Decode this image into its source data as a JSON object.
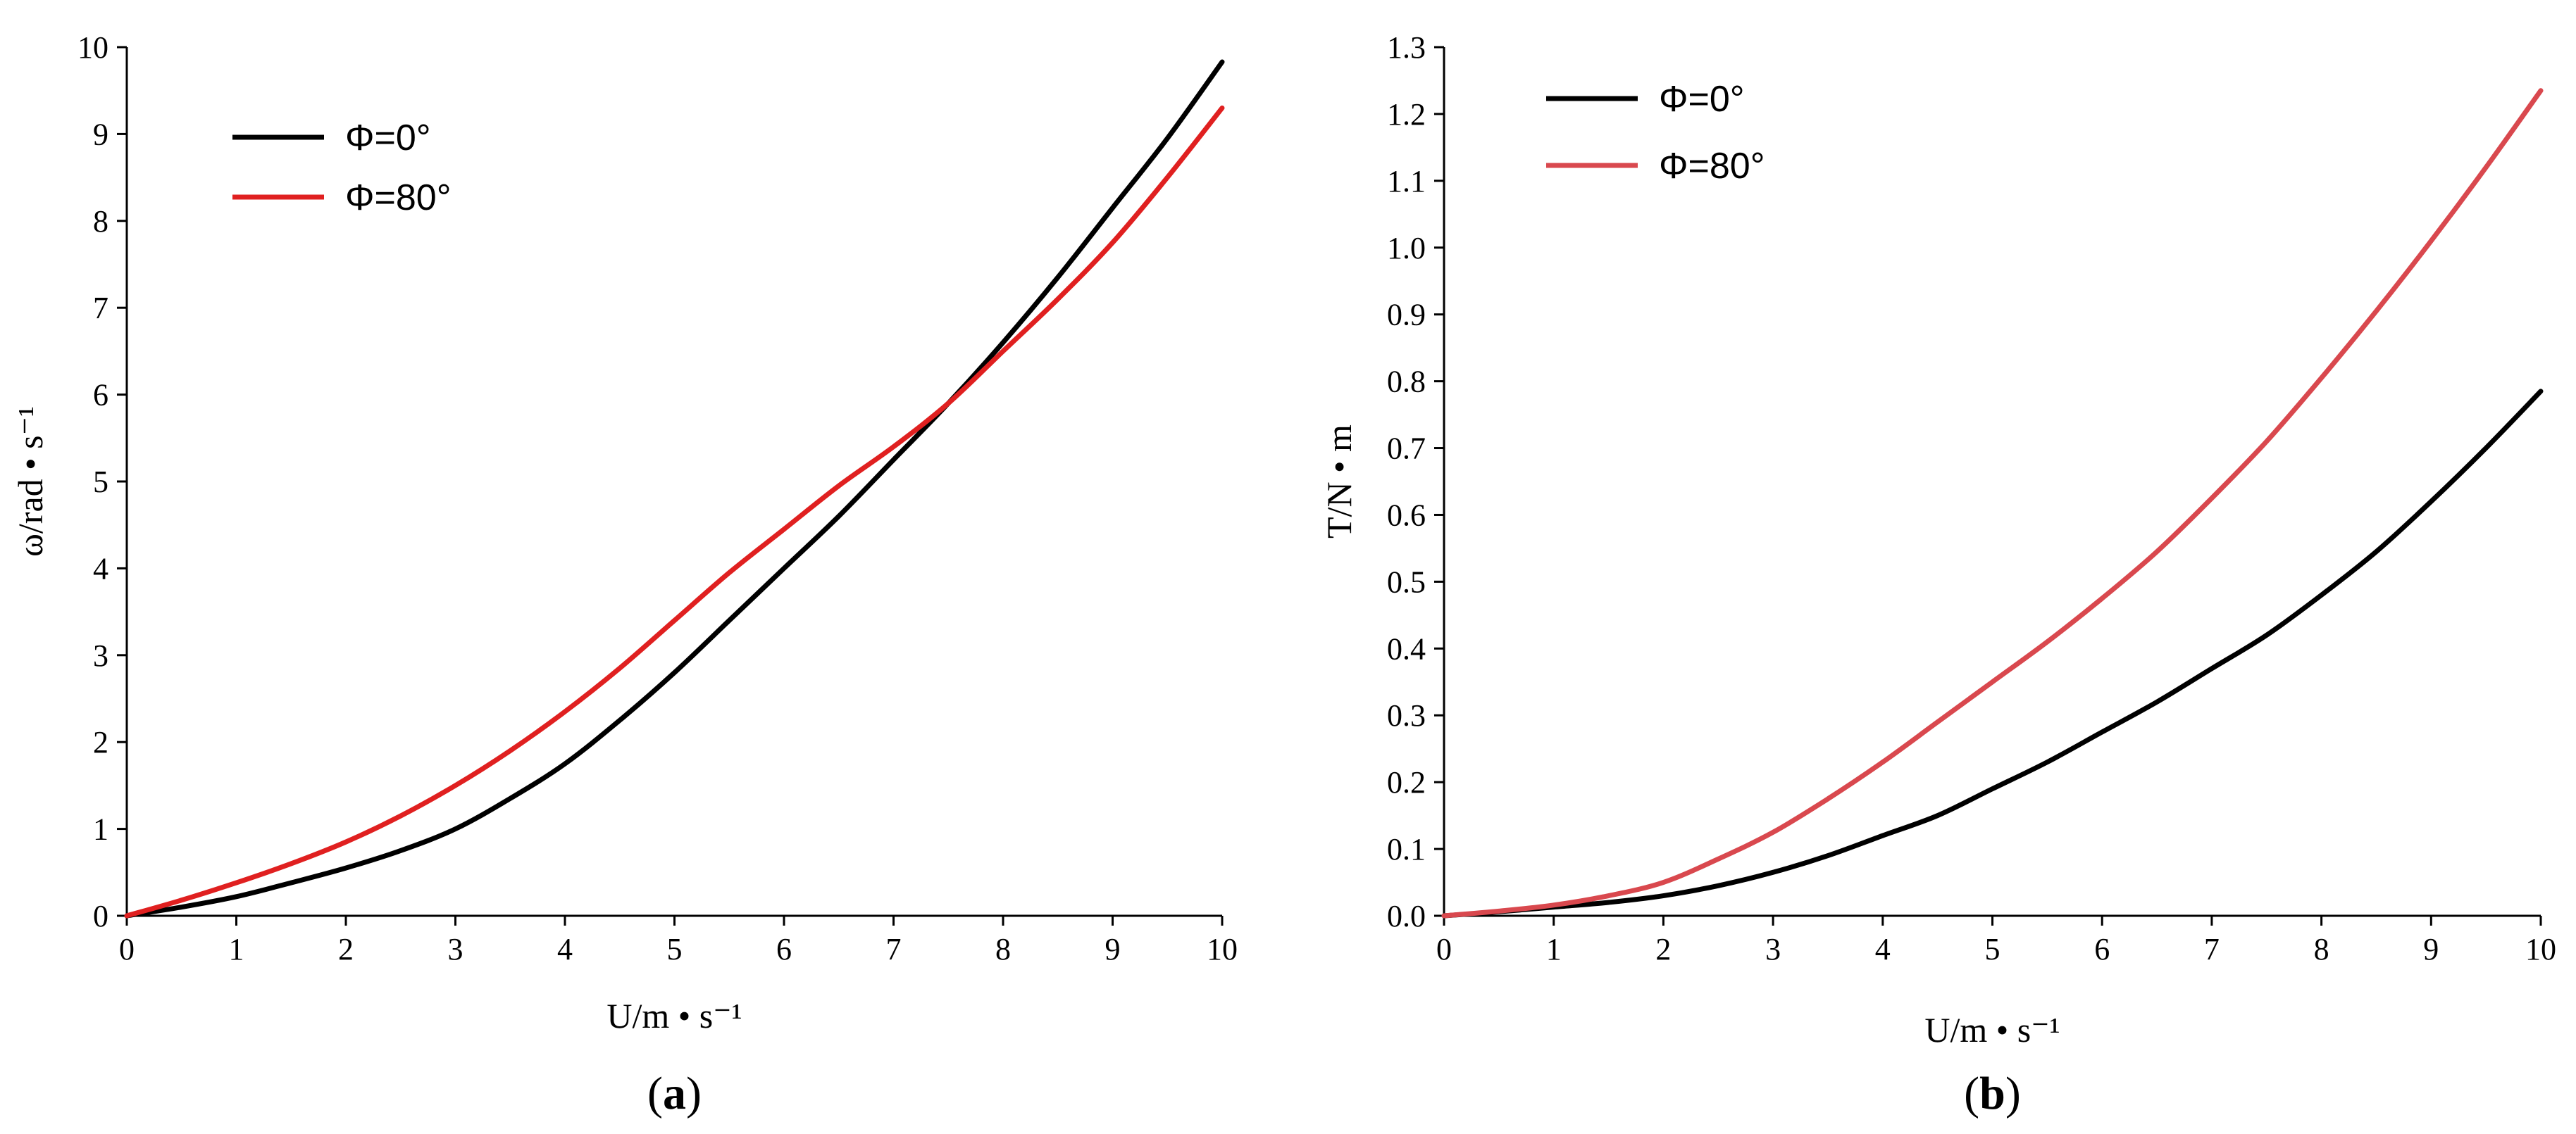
{
  "chart_data": [
    {
      "type": "line",
      "panel_label": "a",
      "xlabel": "U/m • s⁻¹",
      "ylabel": "ω/rad • s⁻¹",
      "xlim": [
        0,
        10
      ],
      "ylim": [
        0,
        10
      ],
      "x_ticks": [
        0,
        1,
        2,
        3,
        4,
        5,
        6,
        7,
        8,
        9,
        10
      ],
      "y_ticks": [
        0,
        1,
        2,
        3,
        4,
        5,
        6,
        7,
        8,
        9,
        10
      ],
      "legend_position": "top-left",
      "series": [
        {
          "name": "Φ=0°",
          "color": "#000000",
          "x": [
            0,
            0.5,
            1,
            1.5,
            2,
            2.5,
            3,
            3.5,
            4,
            4.5,
            5,
            5.5,
            6,
            6.5,
            7,
            7.5,
            8,
            8.5,
            9,
            9.5,
            10
          ],
          "y": [
            0,
            0.1,
            0.22,
            0.38,
            0.55,
            0.75,
            1.0,
            1.35,
            1.75,
            2.25,
            2.8,
            3.4,
            4.0,
            4.6,
            5.25,
            5.9,
            6.6,
            7.35,
            8.15,
            8.95,
            9.83
          ]
        },
        {
          "name": "Φ=80°",
          "color": "#e02020",
          "x": [
            0,
            0.5,
            1,
            1.5,
            2,
            2.5,
            3,
            3.5,
            4,
            4.5,
            5,
            5.5,
            6,
            6.5,
            7,
            7.5,
            8,
            8.5,
            9,
            9.5,
            10
          ],
          "y": [
            0,
            0.18,
            0.38,
            0.6,
            0.85,
            1.15,
            1.5,
            1.9,
            2.35,
            2.85,
            3.4,
            3.95,
            4.45,
            4.95,
            5.4,
            5.9,
            6.5,
            7.1,
            7.75,
            8.5,
            9.3
          ]
        }
      ]
    },
    {
      "type": "line",
      "panel_label": "b",
      "xlabel": "U/m • s⁻¹",
      "ylabel": "T/N • m",
      "xlim": [
        0,
        10
      ],
      "ylim": [
        0,
        1.3
      ],
      "x_ticks": [
        0,
        1,
        2,
        3,
        4,
        5,
        6,
        7,
        8,
        9,
        10
      ],
      "y_ticks": [
        "0.0",
        "0.1",
        "0.2",
        "0.3",
        "0.4",
        "0.5",
        "0.6",
        "0.7",
        "0.8",
        "0.9",
        "1.0",
        "1.1",
        "1.2",
        "1.3"
      ],
      "legend_position": "top-left",
      "series": [
        {
          "name": "Φ=0°",
          "color": "#000000",
          "x": [
            0,
            0.5,
            1,
            1.5,
            2,
            2.5,
            3,
            3.5,
            4,
            4.5,
            5,
            5.5,
            6,
            6.5,
            7,
            7.5,
            8,
            8.5,
            9,
            9.5,
            10
          ],
          "y": [
            0,
            0.006,
            0.013,
            0.02,
            0.03,
            0.045,
            0.065,
            0.09,
            0.12,
            0.15,
            0.19,
            0.23,
            0.275,
            0.32,
            0.37,
            0.42,
            0.48,
            0.545,
            0.62,
            0.7,
            0.785
          ]
        },
        {
          "name": "Φ=80°",
          "color": "#d9484e",
          "x": [
            0,
            0.5,
            1,
            1.5,
            2,
            2.5,
            3,
            3.5,
            4,
            4.5,
            5,
            5.5,
            6,
            6.5,
            7,
            7.5,
            8,
            8.5,
            9,
            9.5,
            10
          ],
          "y": [
            0,
            0.007,
            0.016,
            0.03,
            0.05,
            0.085,
            0.125,
            0.175,
            0.23,
            0.29,
            0.35,
            0.41,
            0.475,
            0.545,
            0.625,
            0.71,
            0.805,
            0.905,
            1.01,
            1.12,
            1.235
          ]
        }
      ]
    }
  ]
}
